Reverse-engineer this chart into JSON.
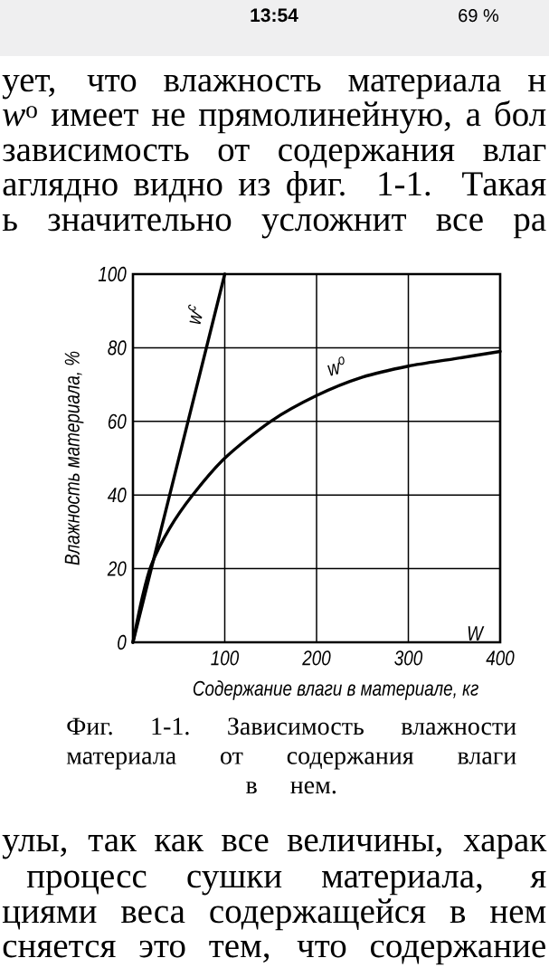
{
  "chart_data": {
    "type": "line",
    "title": "Фиг. 1-1. Зависимость влажности материала от содержания влаги в нем.",
    "xlabel": "Содержание влаги в материале, кг",
    "ylabel": "Влажность материала, %",
    "xlim": [
      0,
      400
    ],
    "ylim": [
      0,
      100
    ],
    "xticks": [
      100,
      200,
      300,
      400
    ],
    "yticks": [
      0,
      20,
      40,
      60,
      80,
      100
    ],
    "grid": true,
    "series": [
      {
        "name": "w$^{c}$",
        "color": "#000000",
        "x": [
          0,
          100
        ],
        "values": [
          0,
          100
        ]
      },
      {
        "name": "w$^{o}$",
        "color": "#000000",
        "x": [
          0,
          10,
          20,
          40,
          65,
          100,
          150,
          200,
          250,
          300,
          350,
          400
        ],
        "values": [
          0,
          12,
          21,
          31,
          40,
          50,
          60,
          67,
          72,
          75,
          77,
          79
        ]
      }
    ],
    "annotations": [
      "13:54",
      "69 %",
      "ует, что влажность материала н",
      "*w*$^{o}$ имеет не прямолинейную, а бол",
      "зависимость от содержания влаг",
      "аглядно видно из фиг. 1-1. Такая",
      "ь значительно усложнит все ра",
      "улы, так как все величины, харак",
      "процесс сушки материала, я",
      "циями веса содержащейся в нем",
      "сняется это тем, что содержание",
      "W"
    ]
  }
}
